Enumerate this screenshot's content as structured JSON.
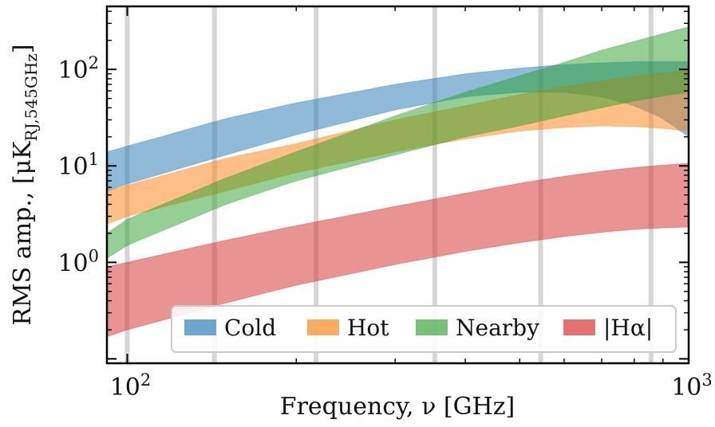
{
  "chart_data": {
    "type": "area",
    "xscale": "log",
    "yscale": "log",
    "xlim": [
      92,
      1000
    ],
    "ylim": [
      0.09,
      450
    ],
    "xlabel": "Frequency, ν [GHz]",
    "ylabel": "RMS amp., [μK",
    "ylabel_subscript": "RJ,545GHz",
    "ylabel_close": "]",
    "x_ticks": [
      {
        "value": 100,
        "base": "10",
        "exp": "2"
      },
      {
        "value": 1000,
        "base": "10",
        "exp": "3"
      }
    ],
    "y_ticks": [
      {
        "value": 1,
        "base": "10",
        "exp": "0"
      },
      {
        "value": 10,
        "base": "10",
        "exp": "1"
      },
      {
        "value": 100,
        "base": "10",
        "exp": "2"
      }
    ],
    "channel_lines_ghz": [
      100,
      143,
      217,
      353,
      545,
      857
    ],
    "legend": {
      "placement": "lower-right"
    },
    "series": [
      {
        "name": "Cold",
        "color": "#1f77b4",
        "opacity": 0.5,
        "x": [
          92,
          100,
          150,
          200,
          300,
          400,
          500,
          600,
          700,
          800,
          900,
          1000
        ],
        "lower": [
          5.5,
          6.5,
          13,
          21,
          38,
          52,
          58,
          58,
          52,
          42,
          31,
          20
        ],
        "upper": [
          14,
          16,
          31,
          45,
          70,
          90,
          103,
          112,
          117,
          120,
          120,
          120
        ]
      },
      {
        "name": "Hot",
        "color": "#ff7f0e",
        "opacity": 0.5,
        "x": [
          92,
          100,
          150,
          200,
          300,
          400,
          500,
          600,
          700,
          800,
          900,
          1000
        ],
        "lower": [
          2.5,
          3.0,
          5.5,
          8.5,
          14,
          19,
          23,
          25,
          26,
          25.5,
          24.5,
          23
        ],
        "upper": [
          5.5,
          6.3,
          12,
          17,
          30,
          42,
          55,
          66,
          76,
          86,
          92,
          98
        ]
      },
      {
        "name": "Nearby",
        "color": "#2ca02c",
        "opacity": 0.5,
        "x": [
          92,
          100,
          150,
          200,
          300,
          400,
          500,
          600,
          700,
          800,
          900,
          1000
        ],
        "lower": [
          1.1,
          1.5,
          4.0,
          7.0,
          13,
          20,
          26,
          33,
          40,
          47,
          53,
          58
        ],
        "upper": [
          2.0,
          2.8,
          7.5,
          14,
          33,
          58,
          86,
          118,
          158,
          195,
          235,
          275
        ]
      },
      {
        "name": "|Hα|",
        "color": "#d62728",
        "opacity": 0.5,
        "x": [
          92,
          100,
          150,
          200,
          300,
          400,
          500,
          600,
          700,
          800,
          900,
          1000
        ],
        "lower": [
          0.17,
          0.2,
          0.38,
          0.58,
          0.95,
          1.3,
          1.6,
          1.85,
          2.05,
          2.2,
          2.28,
          2.32
        ],
        "upper": [
          0.9,
          1.0,
          1.7,
          2.4,
          3.8,
          5.2,
          6.6,
          7.8,
          8.8,
          9.6,
          10.2,
          10.6
        ]
      }
    ]
  }
}
